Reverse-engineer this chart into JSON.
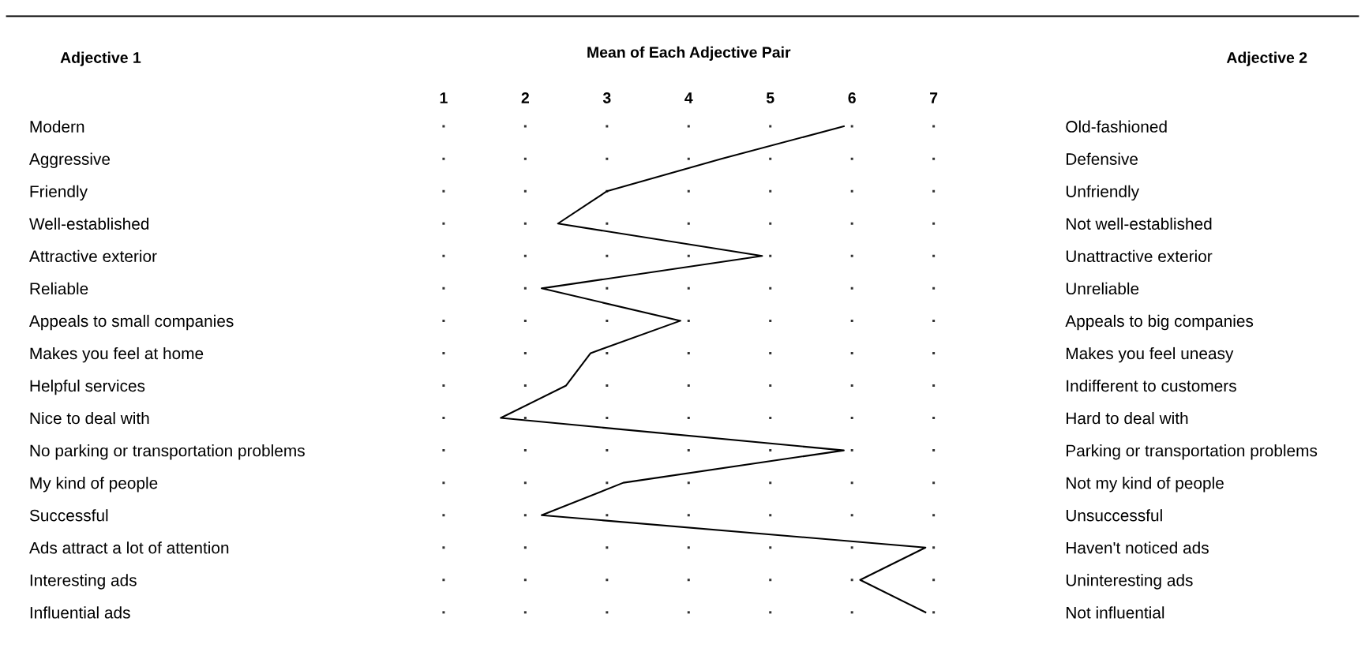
{
  "chart_data": {
    "type": "line",
    "orientation": "horizontal",
    "title": "Mean of Each Adjective Pair",
    "ylabel": "Adjective 1",
    "annotations": [
      "Adjective 2"
    ],
    "categories": [
      "Modern",
      "Aggressive",
      "Friendly",
      "Well-established",
      "Attractive exterior",
      "Reliable",
      "Appeals to small companies",
      "Makes you feel at home",
      "Helpful services",
      "Nice to deal with",
      "No parking or transportation problems",
      "My kind of people",
      "Successful",
      "Ads attract a lot of attention",
      "Interesting ads",
      "Influential ads"
    ],
    "y2_categories": [
      "Old-fashioned",
      "Defensive",
      "Unfriendly",
      "Not well-established",
      "Unattractive exterior",
      "Unreliable",
      "Appeals to big companies",
      "Makes you feel uneasy",
      "Indifferent to customers",
      "Hard to deal with",
      "Parking or transportation problems",
      "Not my kind of people",
      "Unsuccessful",
      "Haven't noticed ads",
      "Uninteresting ads",
      "Not influential"
    ],
    "series": [
      {
        "color": "#000000",
        "axis": "x2",
        "values": [
          5.9,
          4.4,
          3.0,
          2.4,
          4.9,
          2.2,
          3.9,
          2.8,
          2.5,
          1.7,
          5.9,
          3.2,
          2.2,
          6.9,
          6.1,
          6.9
        ]
      }
    ],
    "x2lim": [
      1,
      7
    ],
    "x2ticks": [
      1,
      2,
      3,
      4,
      5,
      6,
      7
    ],
    "grid": true,
    "marker": "none",
    "line_style": "solid"
  }
}
